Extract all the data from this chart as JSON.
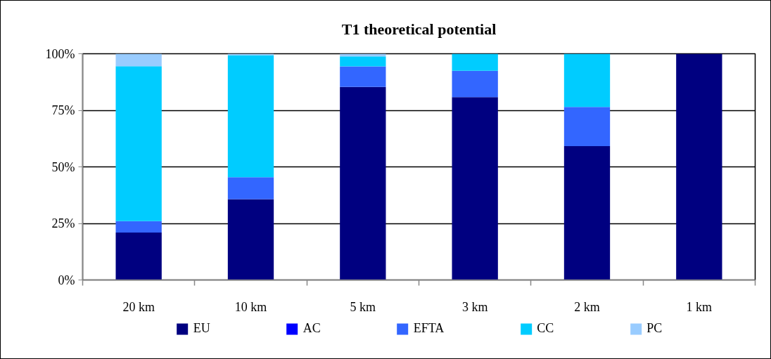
{
  "chart_data": {
    "type": "bar",
    "title": "T1 theoretical potential",
    "categories": [
      "20 km",
      "10 km",
      "5 km",
      "3 km",
      "2 km",
      "1 km"
    ],
    "stacked": true,
    "series": [
      {
        "name": "EU",
        "color": "#000080",
        "values": [
          21,
          35.7,
          85.3,
          80.8,
          59.2,
          100
        ]
      },
      {
        "name": "AC",
        "color": "#0000ff",
        "values": [
          0,
          0,
          0,
          0,
          0,
          0
        ]
      },
      {
        "name": "EFTA",
        "color": "#3366ff",
        "values": [
          5,
          9.7,
          9.1,
          11.7,
          17.3,
          0
        ]
      },
      {
        "name": "CC",
        "color": "#00ccff",
        "values": [
          68.5,
          54,
          4.4,
          7.5,
          23.5,
          0
        ]
      },
      {
        "name": "PC",
        "color": "#99ccff",
        "values": [
          5.5,
          0.6,
          1.2,
          0,
          0,
          0
        ]
      }
    ],
    "ylim": [
      0,
      100
    ],
    "yticks": [
      {
        "value": 0,
        "label": "0%"
      },
      {
        "value": 25,
        "label": "25%"
      },
      {
        "value": 50,
        "label": "50%"
      },
      {
        "value": 75,
        "label": "75%"
      },
      {
        "value": 100,
        "label": "100%"
      }
    ],
    "grid": "y",
    "legend": "bottom"
  }
}
